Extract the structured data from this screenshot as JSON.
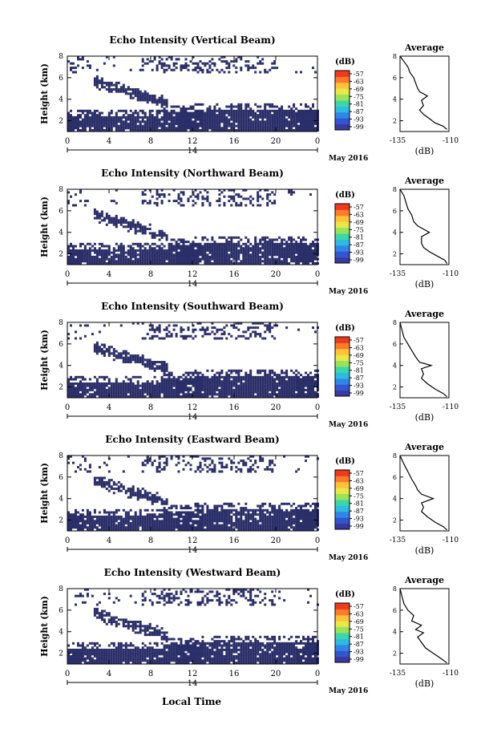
{
  "colors": {
    "dark": "#2b2f69",
    "colorbar": [
      "#3a3a9e",
      "#3355d0",
      "#2f86e8",
      "#2fbbe0",
      "#3dd6a8",
      "#98e35a",
      "#e8e84a",
      "#ffc238",
      "#ff7a2a",
      "#f03a1e"
    ]
  },
  "shared": {
    "x_ticks": [
      "0",
      "4",
      "8",
      "12",
      "16",
      "20",
      "0"
    ],
    "y_ticks": [
      "2",
      "4",
      "6",
      "8"
    ],
    "ylabel": "Height (km)",
    "date_center": "14",
    "date_label": "May 2016",
    "colorbar_unit": "(dB)",
    "colorbar_ticks": [
      "-57",
      "-63",
      "-69",
      "-75",
      "-81",
      "-87",
      "-93",
      "-99"
    ],
    "avg_title": "Average",
    "avg_xticks": [
      "-135",
      "-110"
    ],
    "avg_xlabel": "(dB)",
    "avg_yticks": [
      "2",
      "4",
      "6",
      "8"
    ],
    "bottom_xlabel": "Local Time"
  },
  "chart_data": [
    {
      "type": "heatmap",
      "title": "Echo Intensity (Vertical Beam)",
      "xlim": [
        0,
        24
      ],
      "ylim": [
        1,
        8
      ],
      "average_profile": {
        "xlim": [
          -135,
          -110
        ],
        "ylim": [
          1,
          8
        ],
        "points": [
          [
            -135,
            8.0
          ],
          [
            -133,
            7.5
          ],
          [
            -131,
            7.0
          ],
          [
            -130,
            6.5
          ],
          [
            -128,
            6.0
          ],
          [
            -127,
            5.5
          ],
          [
            -126,
            5.0
          ],
          [
            -125,
            4.7
          ],
          [
            -121,
            4.3
          ],
          [
            -124,
            3.9
          ],
          [
            -123,
            3.4
          ],
          [
            -125,
            3.0
          ],
          [
            -123,
            2.6
          ],
          [
            -120,
            2.2
          ],
          [
            -117,
            1.8
          ],
          [
            -113,
            1.5
          ],
          [
            -111,
            1.2
          ]
        ]
      }
    },
    {
      "type": "heatmap",
      "title": "Echo Intensity (Northward Beam)",
      "xlim": [
        0,
        24
      ],
      "ylim": [
        1,
        8
      ],
      "average_profile": {
        "xlim": [
          -135,
          -110
        ],
        "ylim": [
          1,
          8
        ],
        "points": [
          [
            -135,
            8.0
          ],
          [
            -133,
            7.4
          ],
          [
            -132,
            6.8
          ],
          [
            -131,
            6.2
          ],
          [
            -129,
            5.6
          ],
          [
            -128,
            5.0
          ],
          [
            -126,
            4.6
          ],
          [
            -120,
            4.0
          ],
          [
            -124,
            3.6
          ],
          [
            -124,
            3.0
          ],
          [
            -123,
            2.6
          ],
          [
            -120,
            2.2
          ],
          [
            -116,
            1.8
          ],
          [
            -112,
            1.4
          ],
          [
            -111,
            1.1
          ]
        ]
      }
    },
    {
      "type": "heatmap",
      "title": "Echo Intensity (Southward Beam)",
      "xlim": [
        0,
        24
      ],
      "ylim": [
        1,
        8
      ],
      "average_profile": {
        "xlim": [
          -135,
          -110
        ],
        "ylim": [
          1,
          8
        ],
        "points": [
          [
            -135,
            8.0
          ],
          [
            -134,
            7.3
          ],
          [
            -133,
            6.6
          ],
          [
            -131,
            6.0
          ],
          [
            -129,
            5.4
          ],
          [
            -127,
            4.8
          ],
          [
            -125,
            4.3
          ],
          [
            -119,
            4.0
          ],
          [
            -124,
            3.7
          ],
          [
            -123,
            3.2
          ],
          [
            -124,
            2.8
          ],
          [
            -121,
            2.3
          ],
          [
            -117,
            1.8
          ],
          [
            -113,
            1.4
          ],
          [
            -111,
            1.1
          ]
        ]
      }
    },
    {
      "type": "heatmap",
      "title": "Echo Intensity (Eastward Beam)",
      "xlim": [
        0,
        24
      ],
      "ylim": [
        1,
        8
      ],
      "average_profile": {
        "xlim": [
          -135,
          -110
        ],
        "ylim": [
          1,
          8
        ],
        "points": [
          [
            -135,
            8.0
          ],
          [
            -133,
            7.2
          ],
          [
            -131,
            6.5
          ],
          [
            -129,
            5.8
          ],
          [
            -127,
            5.2
          ],
          [
            -126,
            4.8
          ],
          [
            -124,
            4.4
          ],
          [
            -118,
            4.0
          ],
          [
            -124,
            3.6
          ],
          [
            -123,
            3.2
          ],
          [
            -124,
            2.8
          ],
          [
            -121,
            2.3
          ],
          [
            -117,
            1.8
          ],
          [
            -113,
            1.4
          ],
          [
            -111,
            1.1
          ]
        ]
      }
    },
    {
      "type": "heatmap",
      "title": "Echo Intensity (Westward Beam)",
      "xlim": [
        0,
        24
      ],
      "ylim": [
        1,
        8
      ],
      "average_profile": {
        "xlim": [
          -135,
          -110
        ],
        "ylim": [
          1,
          8
        ],
        "points": [
          [
            -135,
            8.0
          ],
          [
            -134,
            7.3
          ],
          [
            -133,
            6.6
          ],
          [
            -131,
            6.0
          ],
          [
            -128,
            5.5
          ],
          [
            -129,
            5.0
          ],
          [
            -124,
            4.6
          ],
          [
            -127,
            4.2
          ],
          [
            -123,
            3.9
          ],
          [
            -126,
            3.5
          ],
          [
            -124,
            3.0
          ],
          [
            -122,
            2.5
          ],
          [
            -118,
            2.0
          ],
          [
            -114,
            1.5
          ],
          [
            -111,
            1.1
          ]
        ]
      }
    }
  ]
}
